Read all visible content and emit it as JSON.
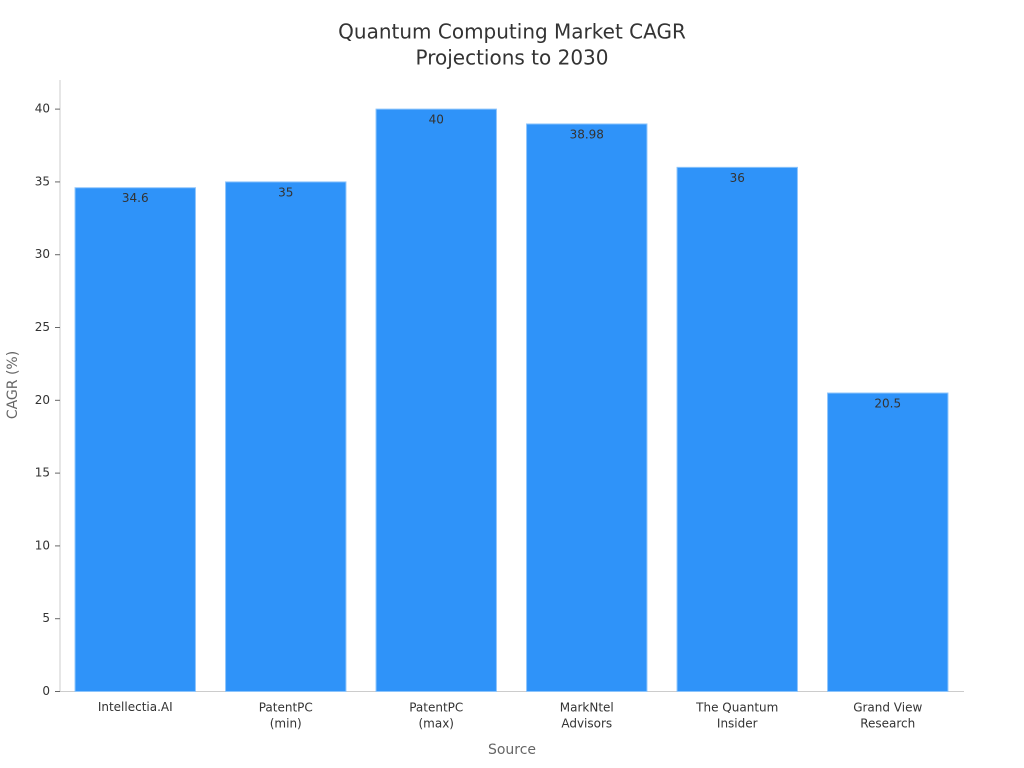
{
  "chart_data": {
    "type": "bar",
    "title": [
      "Quantum Computing Market CAGR",
      "Projections to 2030"
    ],
    "x_label": "Source",
    "y_label": "CAGR (%)",
    "categories": [
      "Intellectia.AI",
      "PatentPC\n(min)",
      "PatentPC\n(max)",
      "MarkNtel\nAdvisors",
      "The Quantum\nInsider",
      "Grand View\nResearch"
    ],
    "values": [
      34.6,
      35,
      40,
      38.98,
      36,
      20.5
    ],
    "color": "#2f93f9",
    "ylim": [
      0,
      42
    ],
    "yticks": [
      0,
      5,
      10,
      15,
      20,
      25,
      30,
      35,
      40
    ],
    "grid": false
  }
}
